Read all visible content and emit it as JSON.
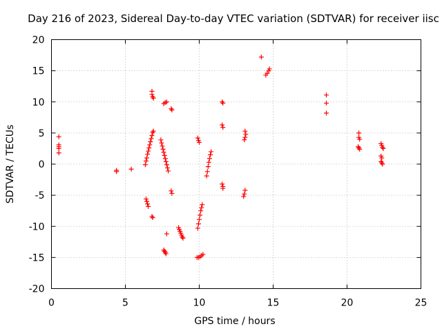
{
  "chart_data": {
    "type": "scatter",
    "title": "Day 216 of 2023, Sidereal Day-to-day VTEC variation (SDTVAR) for receiver iisc",
    "xlabel": "GPS time / hours",
    "ylabel": "SDTVAR / TECUs",
    "xlim": [
      0,
      25
    ],
    "ylim": [
      -20,
      20
    ],
    "xticks": [
      0,
      5,
      10,
      15,
      20,
      25
    ],
    "yticks": [
      -20,
      -15,
      -10,
      -5,
      0,
      5,
      10,
      15,
      20
    ],
    "xtick_labels": [
      "0",
      "5",
      "10",
      "15",
      "20",
      "25"
    ],
    "ytick_labels": [
      "-20",
      "-15",
      "-10",
      "-5",
      "0",
      "5",
      "10",
      "15",
      "20"
    ],
    "grid": true,
    "marker": "+",
    "color": "#ff0000",
    "series": [
      {
        "name": "SDTVAR",
        "points": [
          [
            0.5,
            4.4
          ],
          [
            0.5,
            3.1
          ],
          [
            0.5,
            2.8
          ],
          [
            0.5,
            2.5
          ],
          [
            0.5,
            1.8
          ],
          [
            4.4,
            -1.0
          ],
          [
            4.4,
            -1.2
          ],
          [
            5.4,
            -0.8
          ],
          [
            6.35,
            -0.1
          ],
          [
            6.4,
            0.5
          ],
          [
            6.45,
            1.0
          ],
          [
            6.5,
            1.6
          ],
          [
            6.55,
            2.1
          ],
          [
            6.6,
            2.6
          ],
          [
            6.65,
            3.1
          ],
          [
            6.7,
            3.6
          ],
          [
            6.75,
            4.1
          ],
          [
            6.8,
            4.6
          ],
          [
            6.85,
            5.1
          ],
          [
            6.9,
            5.3
          ],
          [
            6.4,
            -5.6
          ],
          [
            6.45,
            -6.0
          ],
          [
            6.5,
            -6.4
          ],
          [
            6.55,
            -6.8
          ],
          [
            6.8,
            11.7
          ],
          [
            6.8,
            11.2
          ],
          [
            6.85,
            10.8
          ],
          [
            6.9,
            10.6
          ],
          [
            6.8,
            -8.4
          ],
          [
            6.85,
            -8.6
          ],
          [
            7.4,
            3.9
          ],
          [
            7.45,
            3.4
          ],
          [
            7.5,
            2.9
          ],
          [
            7.55,
            2.4
          ],
          [
            7.6,
            1.9
          ],
          [
            7.65,
            1.4
          ],
          [
            7.7,
            0.9
          ],
          [
            7.75,
            0.4
          ],
          [
            7.8,
            -0.1
          ],
          [
            7.85,
            -0.6
          ],
          [
            7.9,
            -1.1
          ],
          [
            7.6,
            9.7
          ],
          [
            7.7,
            9.9
          ],
          [
            7.8,
            10.0
          ],
          [
            8.1,
            8.9
          ],
          [
            8.15,
            8.7
          ],
          [
            8.1,
            -4.3
          ],
          [
            8.15,
            -4.7
          ],
          [
            7.8,
            -11.2
          ],
          [
            7.6,
            -13.8
          ],
          [
            7.65,
            -14.0
          ],
          [
            7.7,
            -14.2
          ],
          [
            7.75,
            -14.4
          ],
          [
            8.6,
            -10.2
          ],
          [
            8.65,
            -10.5
          ],
          [
            8.7,
            -10.8
          ],
          [
            8.75,
            -11.1
          ],
          [
            8.8,
            -11.4
          ],
          [
            8.85,
            -11.7
          ],
          [
            8.9,
            -11.9
          ],
          [
            9.9,
            4.2
          ],
          [
            9.95,
            3.8
          ],
          [
            10.0,
            3.5
          ],
          [
            9.85,
            -15.0
          ],
          [
            9.95,
            -15.0
          ],
          [
            10.05,
            -14.9
          ],
          [
            10.15,
            -14.7
          ],
          [
            10.25,
            -14.5
          ],
          [
            9.9,
            -10.3
          ],
          [
            9.95,
            -9.6
          ],
          [
            10.0,
            -8.9
          ],
          [
            10.05,
            -8.2
          ],
          [
            10.1,
            -7.5
          ],
          [
            10.15,
            -7.0
          ],
          [
            10.2,
            -6.5
          ],
          [
            10.5,
            -1.9
          ],
          [
            10.55,
            -1.2
          ],
          [
            10.6,
            -0.4
          ],
          [
            10.65,
            0.3
          ],
          [
            10.7,
            0.9
          ],
          [
            10.75,
            1.5
          ],
          [
            10.8,
            2.0
          ],
          [
            11.55,
            10.0
          ],
          [
            11.6,
            9.8
          ],
          [
            11.55,
            6.3
          ],
          [
            11.6,
            5.9
          ],
          [
            11.55,
            -3.2
          ],
          [
            11.6,
            -3.6
          ],
          [
            11.6,
            -3.9
          ],
          [
            13.1,
            5.3
          ],
          [
            13.15,
            4.8
          ],
          [
            13.1,
            4.3
          ],
          [
            13.05,
            3.9
          ],
          [
            13.1,
            -4.2
          ],
          [
            13.05,
            -4.8
          ],
          [
            13.0,
            -5.2
          ],
          [
            14.2,
            17.2
          ],
          [
            14.5,
            14.3
          ],
          [
            14.6,
            14.6
          ],
          [
            14.7,
            15.0
          ],
          [
            14.75,
            15.3
          ],
          [
            18.6,
            11.1
          ],
          [
            18.6,
            9.8
          ],
          [
            18.6,
            8.2
          ],
          [
            20.8,
            5.0
          ],
          [
            20.8,
            4.3
          ],
          [
            20.85,
            4.0
          ],
          [
            20.75,
            2.8
          ],
          [
            20.8,
            2.6
          ],
          [
            20.85,
            2.4
          ],
          [
            22.3,
            3.3
          ],
          [
            22.35,
            3.0
          ],
          [
            22.4,
            2.7
          ],
          [
            22.45,
            2.5
          ],
          [
            22.3,
            1.3
          ],
          [
            22.35,
            1.0
          ],
          [
            22.3,
            0.4
          ],
          [
            22.35,
            0.2
          ],
          [
            22.4,
            0.0
          ]
        ]
      }
    ]
  }
}
